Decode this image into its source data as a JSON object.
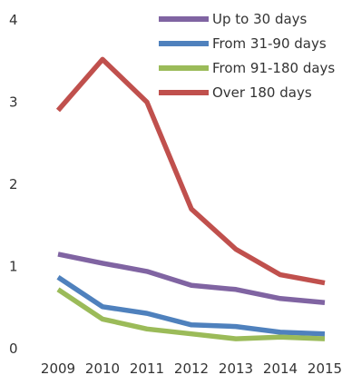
{
  "chart_data": {
    "type": "line",
    "title": "",
    "xlabel": "",
    "ylabel": "",
    "x": [
      "2009",
      "2010",
      "2011",
      "2012",
      "2013",
      "2014",
      "2015"
    ],
    "ylim": [
      0,
      4
    ],
    "yticks": [
      "0",
      "1",
      "2",
      "3",
      "4"
    ],
    "grid": false,
    "legend_position": "top-right",
    "series": [
      {
        "name": "Up to 30 days",
        "color": "#8064a2",
        "values": [
          1.15,
          1.04,
          0.94,
          0.77,
          0.72,
          0.61,
          0.56
        ]
      },
      {
        "name": "From 31-90 days",
        "color": "#4f81bd",
        "values": [
          0.87,
          0.51,
          0.43,
          0.29,
          0.27,
          0.2,
          0.18
        ]
      },
      {
        "name": "From 91-180 days",
        "color": "#9bbb59",
        "values": [
          0.72,
          0.36,
          0.24,
          0.18,
          0.12,
          0.14,
          0.12
        ]
      },
      {
        "name": "Over 180 days",
        "color": "#c0504d",
        "values": [
          2.9,
          3.52,
          3.0,
          1.7,
          1.21,
          0.9,
          0.8
        ]
      }
    ]
  }
}
